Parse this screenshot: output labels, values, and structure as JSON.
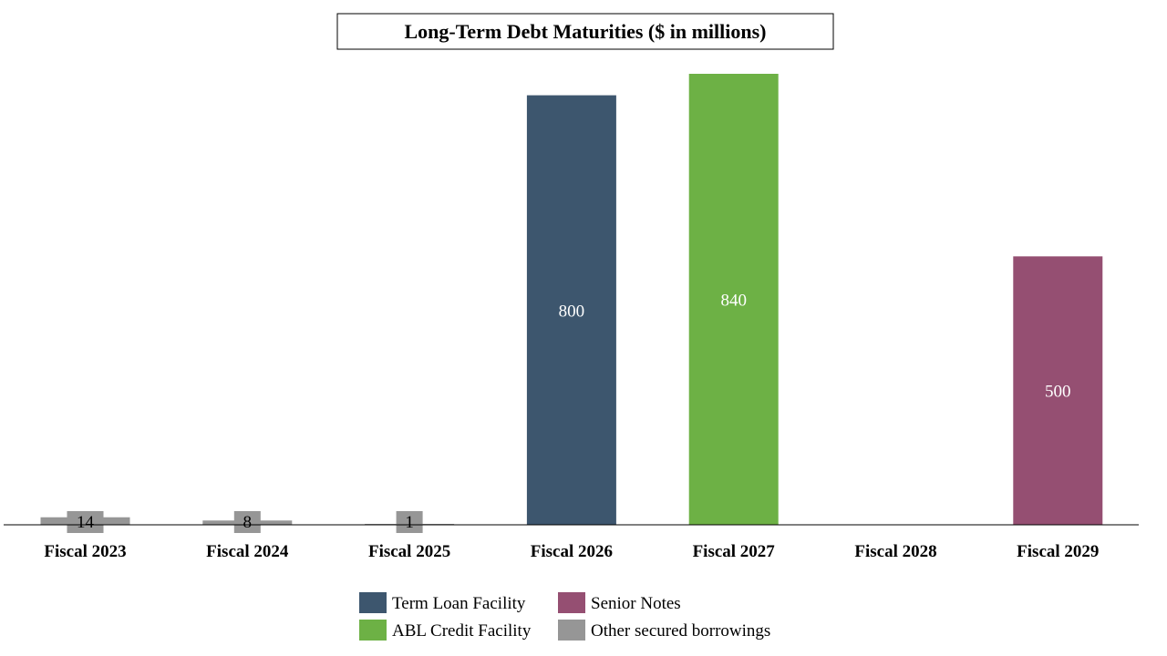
{
  "chart_data": {
    "type": "bar",
    "stacked": true,
    "title": "Long-Term Debt Maturities ($ in millions)",
    "xlabel": "",
    "ylabel": "",
    "ylim": [
      0,
      840
    ],
    "grid": false,
    "legend_position": "bottom",
    "categories": [
      "Fiscal 2023",
      "Fiscal 2024",
      "Fiscal 2025",
      "Fiscal 2026",
      "Fiscal 2027",
      "Fiscal 2028",
      "Fiscal 2029"
    ],
    "series": [
      {
        "name": "Term Loan Facility",
        "color": "#3d566e",
        "label_color": "#ffffff",
        "values": [
          0,
          0,
          0,
          800,
          0,
          0,
          0
        ]
      },
      {
        "name": "ABL Credit Facility",
        "color": "#6db145",
        "label_color": "#ffffff",
        "values": [
          0,
          0,
          0,
          0,
          840,
          0,
          0
        ]
      },
      {
        "name": "Senior Notes",
        "color": "#954f72",
        "label_color": "#ffffff",
        "values": [
          0,
          0,
          0,
          0,
          0,
          0,
          500
        ]
      },
      {
        "name": "Other secured borrowings",
        "color": "#969696",
        "label_color": "#000000",
        "values": [
          14,
          8,
          1,
          0,
          0,
          0,
          0
        ]
      }
    ],
    "legend_order": [
      "Term Loan Facility",
      "Senior Notes",
      "ABL Credit Facility",
      "Other secured borrowings"
    ]
  }
}
